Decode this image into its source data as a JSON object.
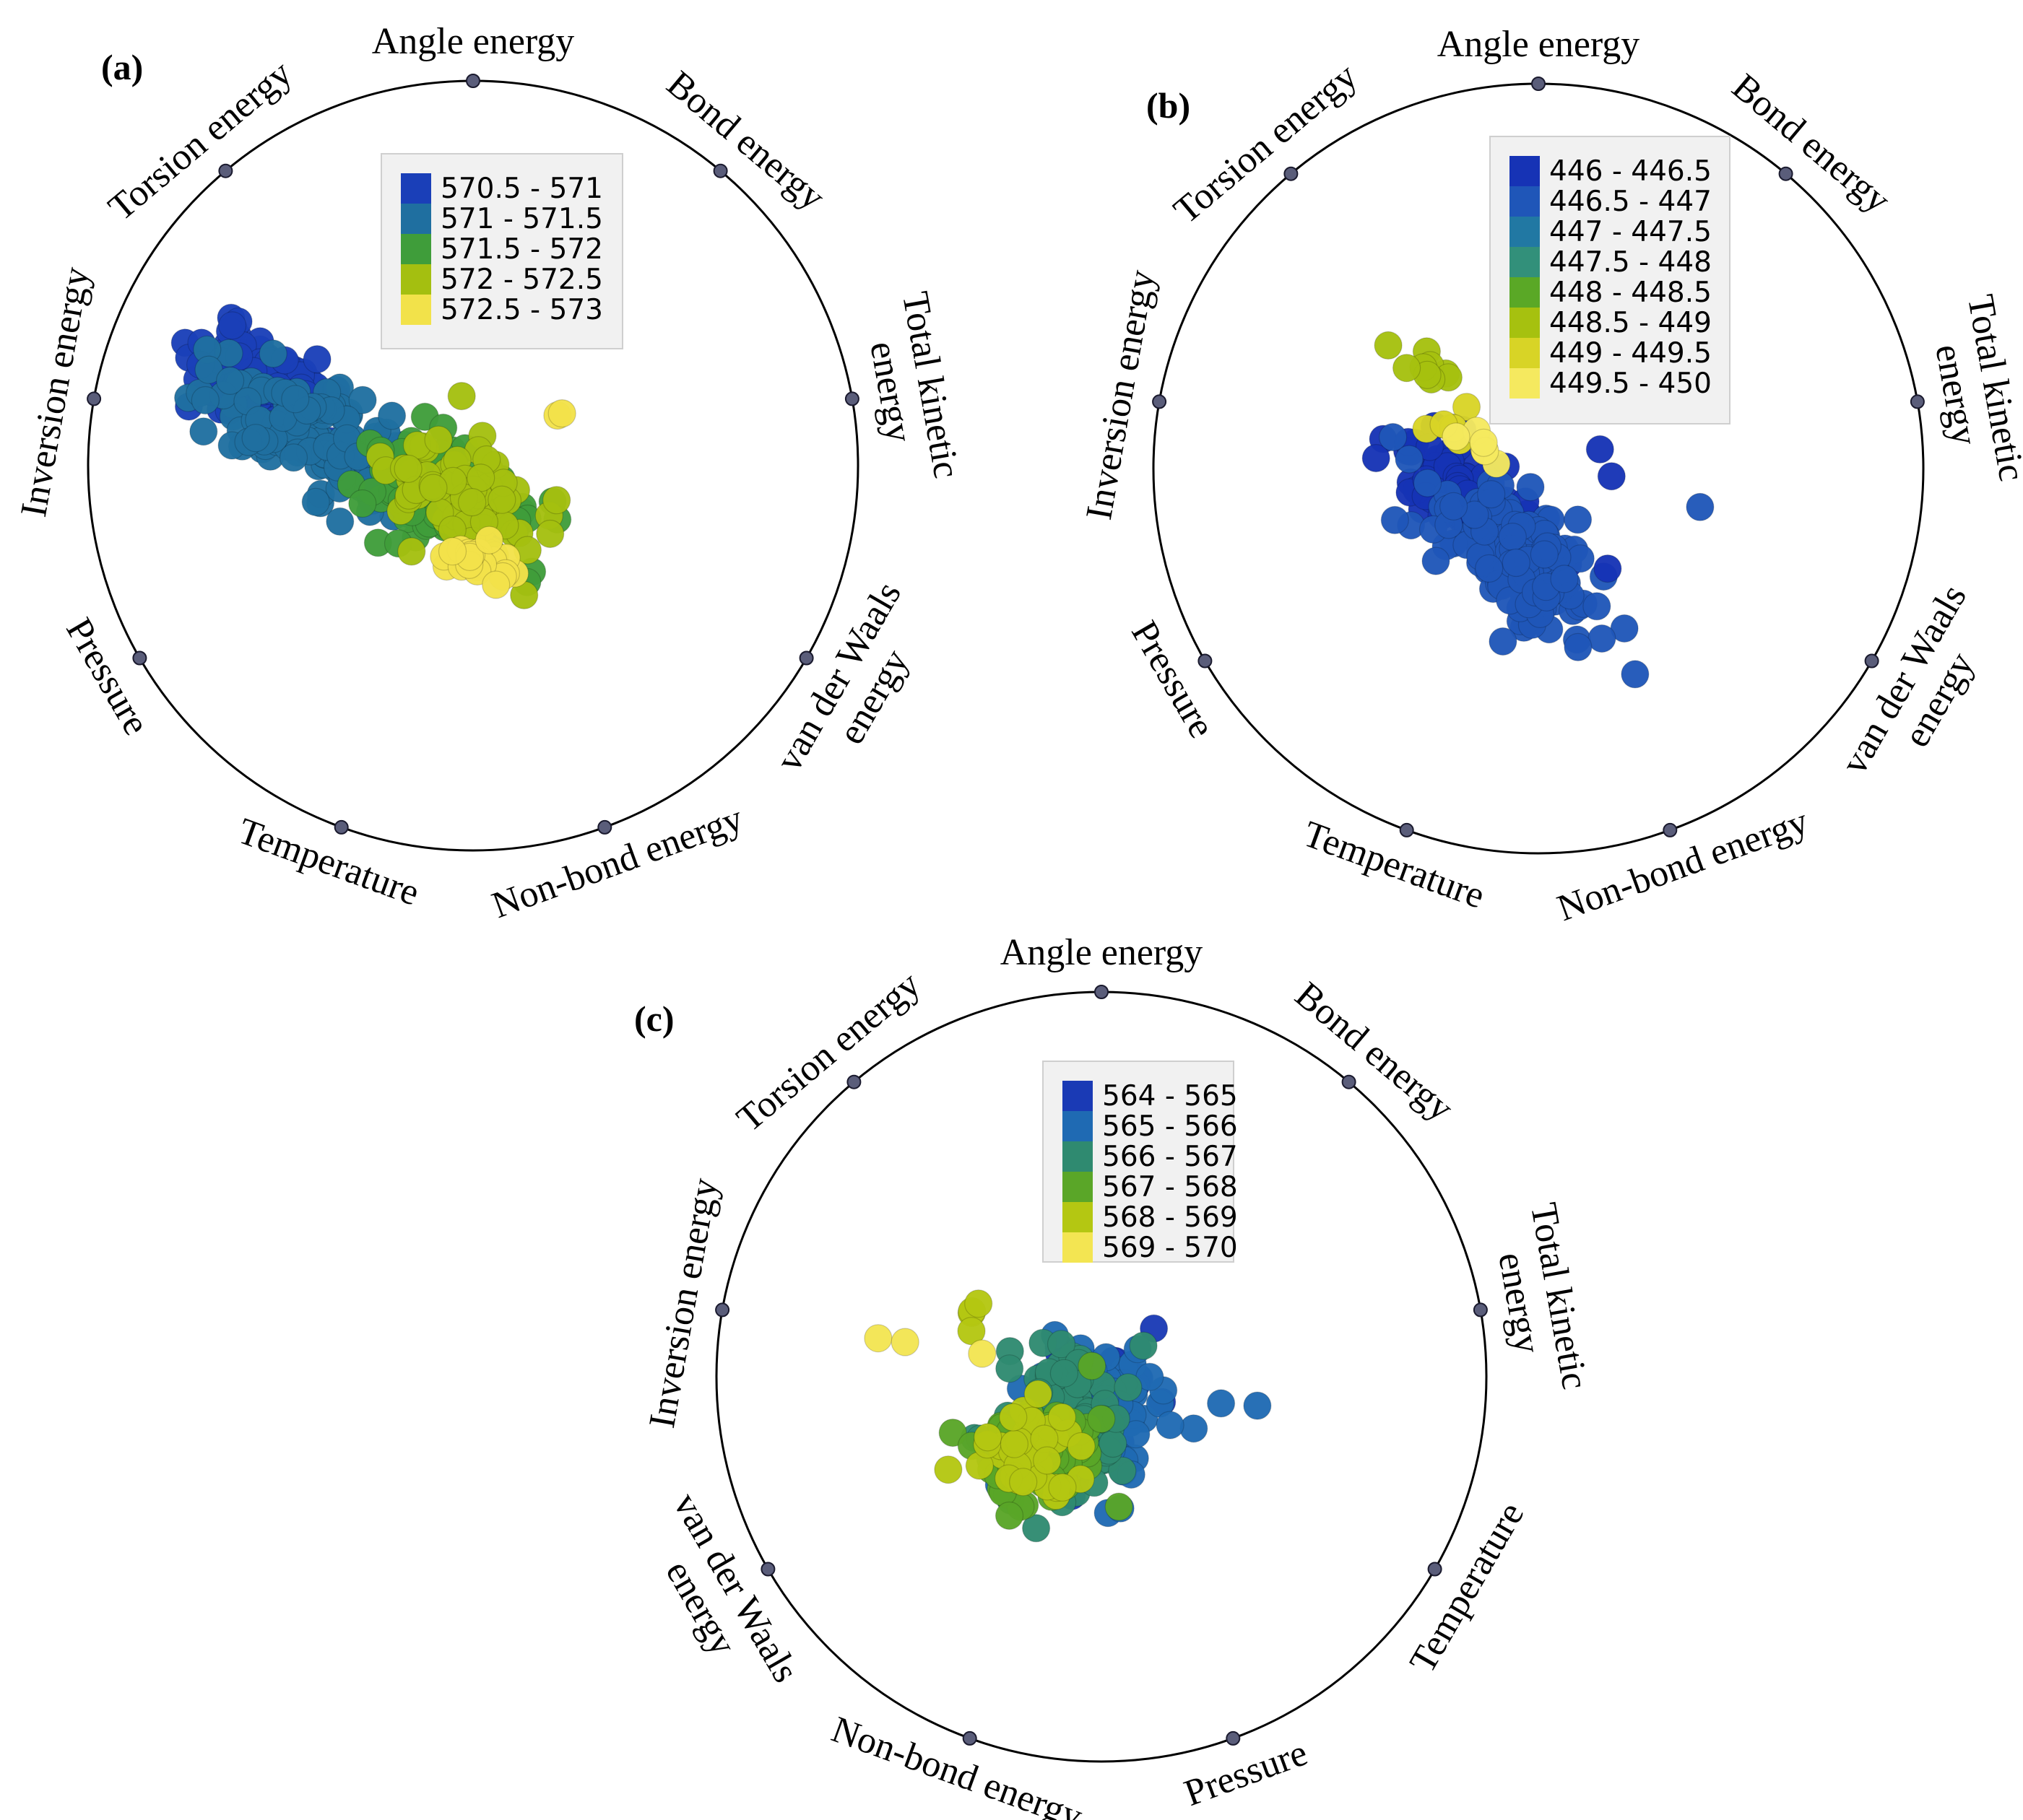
{
  "chart_data": [
    {
      "type": "scatter",
      "subtype": "radviz",
      "panel_label": "(a)",
      "anchors": [
        "Angle energy",
        "Bond energy",
        "Total kinetic energy",
        "van der Waals energy",
        "Non-bond energy",
        "Temperature",
        "Pressure",
        "Inversion energy",
        "Torsion energy"
      ],
      "anchor_lines": [
        [
          "Angle energy"
        ],
        [
          "Bond energy"
        ],
        [
          "Total kinetic",
          "energy"
        ],
        [
          "van der Waals",
          "energy"
        ],
        [
          "Non-bond energy"
        ],
        [
          "Temperature"
        ],
        [
          "Pressure"
        ],
        [
          "Inversion energy"
        ],
        [
          "Torsion energy"
        ]
      ],
      "legend": {
        "bins": [
          "570.5 - 571",
          "571 - 571.5",
          "571.5 - 572",
          "572 - 572.5",
          "572.5 - 573"
        ],
        "colors": [
          "#1a3fb8",
          "#1f6fa0",
          "#3f9d3a",
          "#a4bf10",
          "#f2e24a"
        ]
      },
      "clusters": [
        {
          "bin": 0,
          "n": 110,
          "cx": -0.56,
          "cy": 0.22,
          "sx": 0.09,
          "sy": 0.05,
          "rot": -28,
          "seed": 11
        },
        {
          "bin": 1,
          "n": 140,
          "cx": -0.4,
          "cy": 0.07,
          "sx": 0.16,
          "sy": 0.06,
          "rot": -28,
          "seed": 12
        },
        {
          "bin": 2,
          "n": 90,
          "cx": -0.11,
          "cy": -0.05,
          "sx": 0.13,
          "sy": 0.07,
          "rot": -25,
          "seed": 13
        },
        {
          "bin": 3,
          "n": 90,
          "cx": -0.02,
          "cy": -0.08,
          "sx": 0.1,
          "sy": 0.07,
          "rot": -25,
          "seed": 14
        },
        {
          "bin": 4,
          "n": 24,
          "cx": 0.01,
          "cy": -0.25,
          "sx": 0.05,
          "sy": 0.03,
          "rot": -20,
          "seed": 15
        },
        {
          "bin": 4,
          "n": 2,
          "cx": 0.21,
          "cy": 0.13,
          "sx": 0.015,
          "sy": 0.005,
          "rot": 20,
          "seed": 16
        }
      ]
    },
    {
      "type": "scatter",
      "subtype": "radviz",
      "panel_label": "(b)",
      "anchors": [
        "Angle energy",
        "Bond energy",
        "Total kinetic energy",
        "van der Waals energy",
        "Non-bond energy",
        "Temperature",
        "Pressure",
        "Inversion energy",
        "Torsion energy"
      ],
      "anchor_lines": [
        [
          "Angle energy"
        ],
        [
          "Bond energy"
        ],
        [
          "Total kinetic",
          "energy"
        ],
        [
          "van der Waals",
          "energy"
        ],
        [
          "Non-bond energy"
        ],
        [
          "Temperature"
        ],
        [
          "Pressure"
        ],
        [
          "Inversion energy"
        ],
        [
          "Torsion energy"
        ]
      ],
      "legend": {
        "bins": [
          "446 - 446.5",
          "446.5 - 447",
          "447 - 447.5",
          "447.5 - 448",
          "448 - 448.5",
          "448.5 - 449",
          "449 - 449.5",
          "449.5 - 450"
        ],
        "colors": [
          "#1633b5",
          "#1f56b8",
          "#2178a3",
          "#32907a",
          "#5aa826",
          "#a6c10f",
          "#d8d426",
          "#f5e95f"
        ]
      },
      "clusters": [
        {
          "bin": 0,
          "n": 120,
          "cx": -0.18,
          "cy": -0.08,
          "sx": 0.12,
          "sy": 0.05,
          "rot": -38,
          "seed": 21
        },
        {
          "bin": 1,
          "n": 150,
          "cx": -0.06,
          "cy": -0.22,
          "sx": 0.14,
          "sy": 0.06,
          "rot": -38,
          "seed": 22
        },
        {
          "bin": 5,
          "n": 8,
          "cx": -0.3,
          "cy": 0.26,
          "sx": 0.03,
          "sy": 0.04,
          "rot": 0,
          "seed": 23
        },
        {
          "bin": 6,
          "n": 6,
          "cx": -0.23,
          "cy": 0.12,
          "sx": 0.03,
          "sy": 0.03,
          "rot": 0,
          "seed": 24
        },
        {
          "bin": 7,
          "n": 6,
          "cx": -0.16,
          "cy": 0.05,
          "sx": 0.04,
          "sy": 0.03,
          "rot": 0,
          "seed": 25
        }
      ],
      "points": [
        {
          "bin": 0,
          "x": 0.16,
          "y": 0.05
        },
        {
          "bin": 0,
          "x": 0.19,
          "y": -0.02
        },
        {
          "bin": 1,
          "x": 0.42,
          "y": -0.1
        },
        {
          "bin": 0,
          "x": 0.18,
          "y": -0.26
        },
        {
          "bin": 5,
          "x": -0.39,
          "y": 0.32
        }
      ]
    },
    {
      "type": "scatter",
      "subtype": "radviz",
      "panel_label": "(c)",
      "anchors": [
        "Angle energy",
        "Bond energy",
        "Total kinetic energy",
        "Temperature",
        "Pressure",
        "Non-bond energy",
        "van der Waals energy",
        "Inversion energy",
        "Torsion energy"
      ],
      "anchor_lines": [
        [
          "Angle energy"
        ],
        [
          "Bond energy"
        ],
        [
          "Total kinetic",
          "energy"
        ],
        [
          "Temperature"
        ],
        [
          "Pressure"
        ],
        [
          "Non-bond energy"
        ],
        [
          "van der Waals",
          "energy"
        ],
        [
          "Inversion energy"
        ],
        [
          "Torsion energy"
        ]
      ],
      "legend": {
        "bins": [
          "564 - 565",
          "565 - 566",
          "566 - 567",
          "567 - 568",
          "568 - 569",
          "569 - 570"
        ],
        "colors": [
          "#1a3ab5",
          "#1f6ab3",
          "#2f8a70",
          "#5aa628",
          "#b4c712",
          "#f3e552"
        ]
      },
      "clusters": [
        {
          "bin": 0,
          "n": 25,
          "cx": 0.03,
          "cy": -0.03,
          "sx": 0.09,
          "sy": 0.08,
          "rot": 30,
          "seed": 31
        },
        {
          "bin": 1,
          "n": 80,
          "cx": -0.02,
          "cy": -0.08,
          "sx": 0.1,
          "sy": 0.09,
          "rot": 30,
          "seed": 32
        },
        {
          "bin": 2,
          "n": 90,
          "cx": -0.1,
          "cy": -0.13,
          "sx": 0.1,
          "sy": 0.09,
          "rot": 25,
          "seed": 33
        },
        {
          "bin": 3,
          "n": 80,
          "cx": -0.16,
          "cy": -0.2,
          "sx": 0.08,
          "sy": 0.07,
          "rot": 20,
          "seed": 34
        },
        {
          "bin": 4,
          "n": 40,
          "cx": -0.18,
          "cy": -0.2,
          "sx": 0.07,
          "sy": 0.06,
          "rot": 20,
          "seed": 35
        },
        {
          "bin": 4,
          "n": 4,
          "cx": -0.34,
          "cy": 0.14,
          "sx": 0.01,
          "sy": 0.03,
          "rot": 0,
          "seed": 36
        }
      ],
      "points": [
        {
          "bin": 5,
          "x": -0.58,
          "y": 0.1
        },
        {
          "bin": 5,
          "x": -0.51,
          "y": 0.09
        },
        {
          "bin": 5,
          "x": -0.31,
          "y": 0.06
        }
      ]
    }
  ]
}
